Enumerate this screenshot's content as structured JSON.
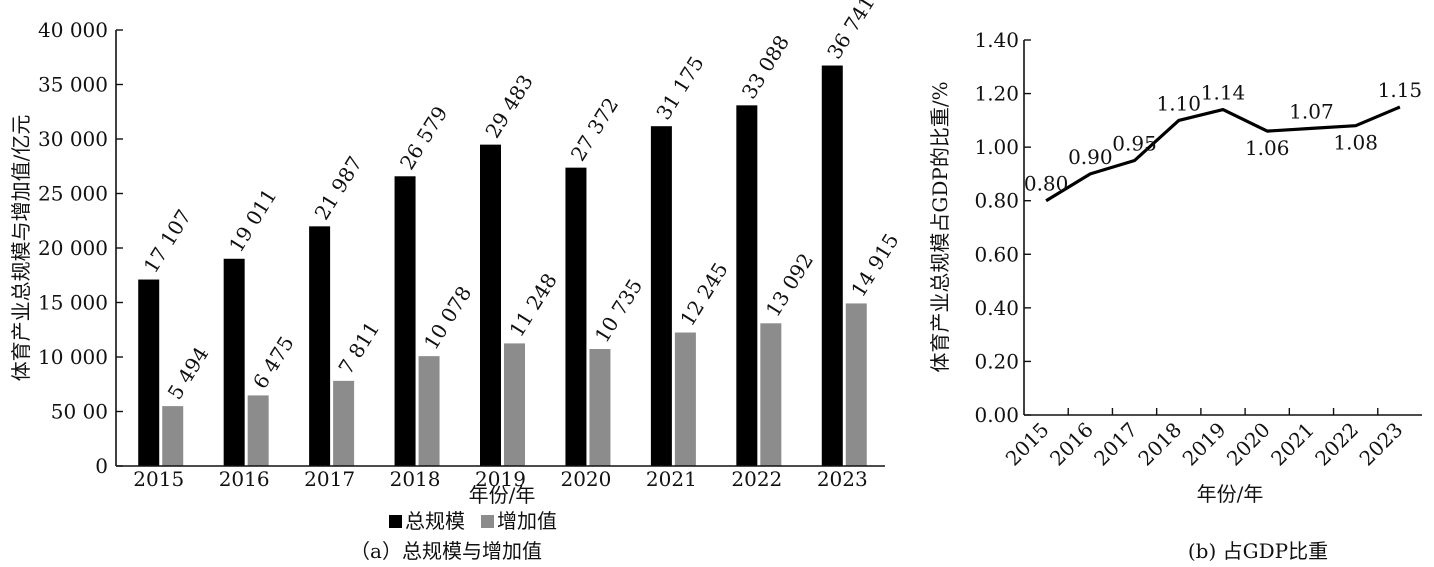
{
  "chart_data": [
    {
      "type": "bar",
      "xlabel": "年份/年",
      "ylabel": "体育产业总规模与增加值/亿元",
      "caption": "（a）总规模与增加值",
      "categories": [
        "2015",
        "2016",
        "2017",
        "2018",
        "2019",
        "2020",
        "2021",
        "2022",
        "2023"
      ],
      "ylim": [
        0,
        40000
      ],
      "yticks": [
        0,
        5000,
        10000,
        15000,
        20000,
        25000,
        30000,
        35000,
        40000
      ],
      "ytick_labels": [
        "0",
        "50 00",
        "10 000",
        "15 000",
        "20 000",
        "25 000",
        "30 000",
        "35 000",
        "40 000"
      ],
      "series": [
        {
          "name": "总规模",
          "color": "#000000",
          "values": [
            17107,
            19011,
            21987,
            26579,
            29483,
            27372,
            31175,
            33088,
            36741
          ],
          "labels": [
            "17 107",
            "19 011",
            "21 987",
            "26 579",
            "29 483",
            "27 372",
            "31 175",
            "33 088",
            "36 741"
          ]
        },
        {
          "name": "增加值",
          "color": "#8c8c8c",
          "values": [
            5494,
            6475,
            7811,
            10078,
            11248,
            10735,
            12245,
            13092,
            14915
          ],
          "labels": [
            "5 494",
            "6 475",
            "7 811",
            "10 078",
            "11 248",
            "10 735",
            "12 245",
            "13 092",
            "14 915"
          ]
        }
      ],
      "legend": "bottom"
    },
    {
      "type": "line",
      "xlabel": "年份/年",
      "ylabel": "体育产业总规模占GDP的比重/%",
      "caption": "(b) 占GDP比重",
      "x": [
        "2015",
        "2016",
        "2017",
        "2018",
        "2019",
        "2020",
        "2021",
        "2022",
        "2023"
      ],
      "values": [
        0.8,
        0.9,
        0.95,
        1.1,
        1.14,
        1.06,
        1.07,
        1.08,
        1.15
      ],
      "labels": [
        "0.80",
        "0.90",
        "0.95",
        "1.10",
        "1.14",
        "1.06",
        "1.07",
        "1.08",
        "1.15"
      ],
      "ylim": [
        0,
        1.4
      ],
      "yticks": [
        0,
        0.2,
        0.4,
        0.6,
        0.8,
        1.0,
        1.2,
        1.4
      ],
      "ytick_labels": [
        "0.00",
        "0.20",
        "0.40",
        "0.60",
        "0.80",
        "1.00",
        "1.20",
        "1.40"
      ]
    }
  ]
}
